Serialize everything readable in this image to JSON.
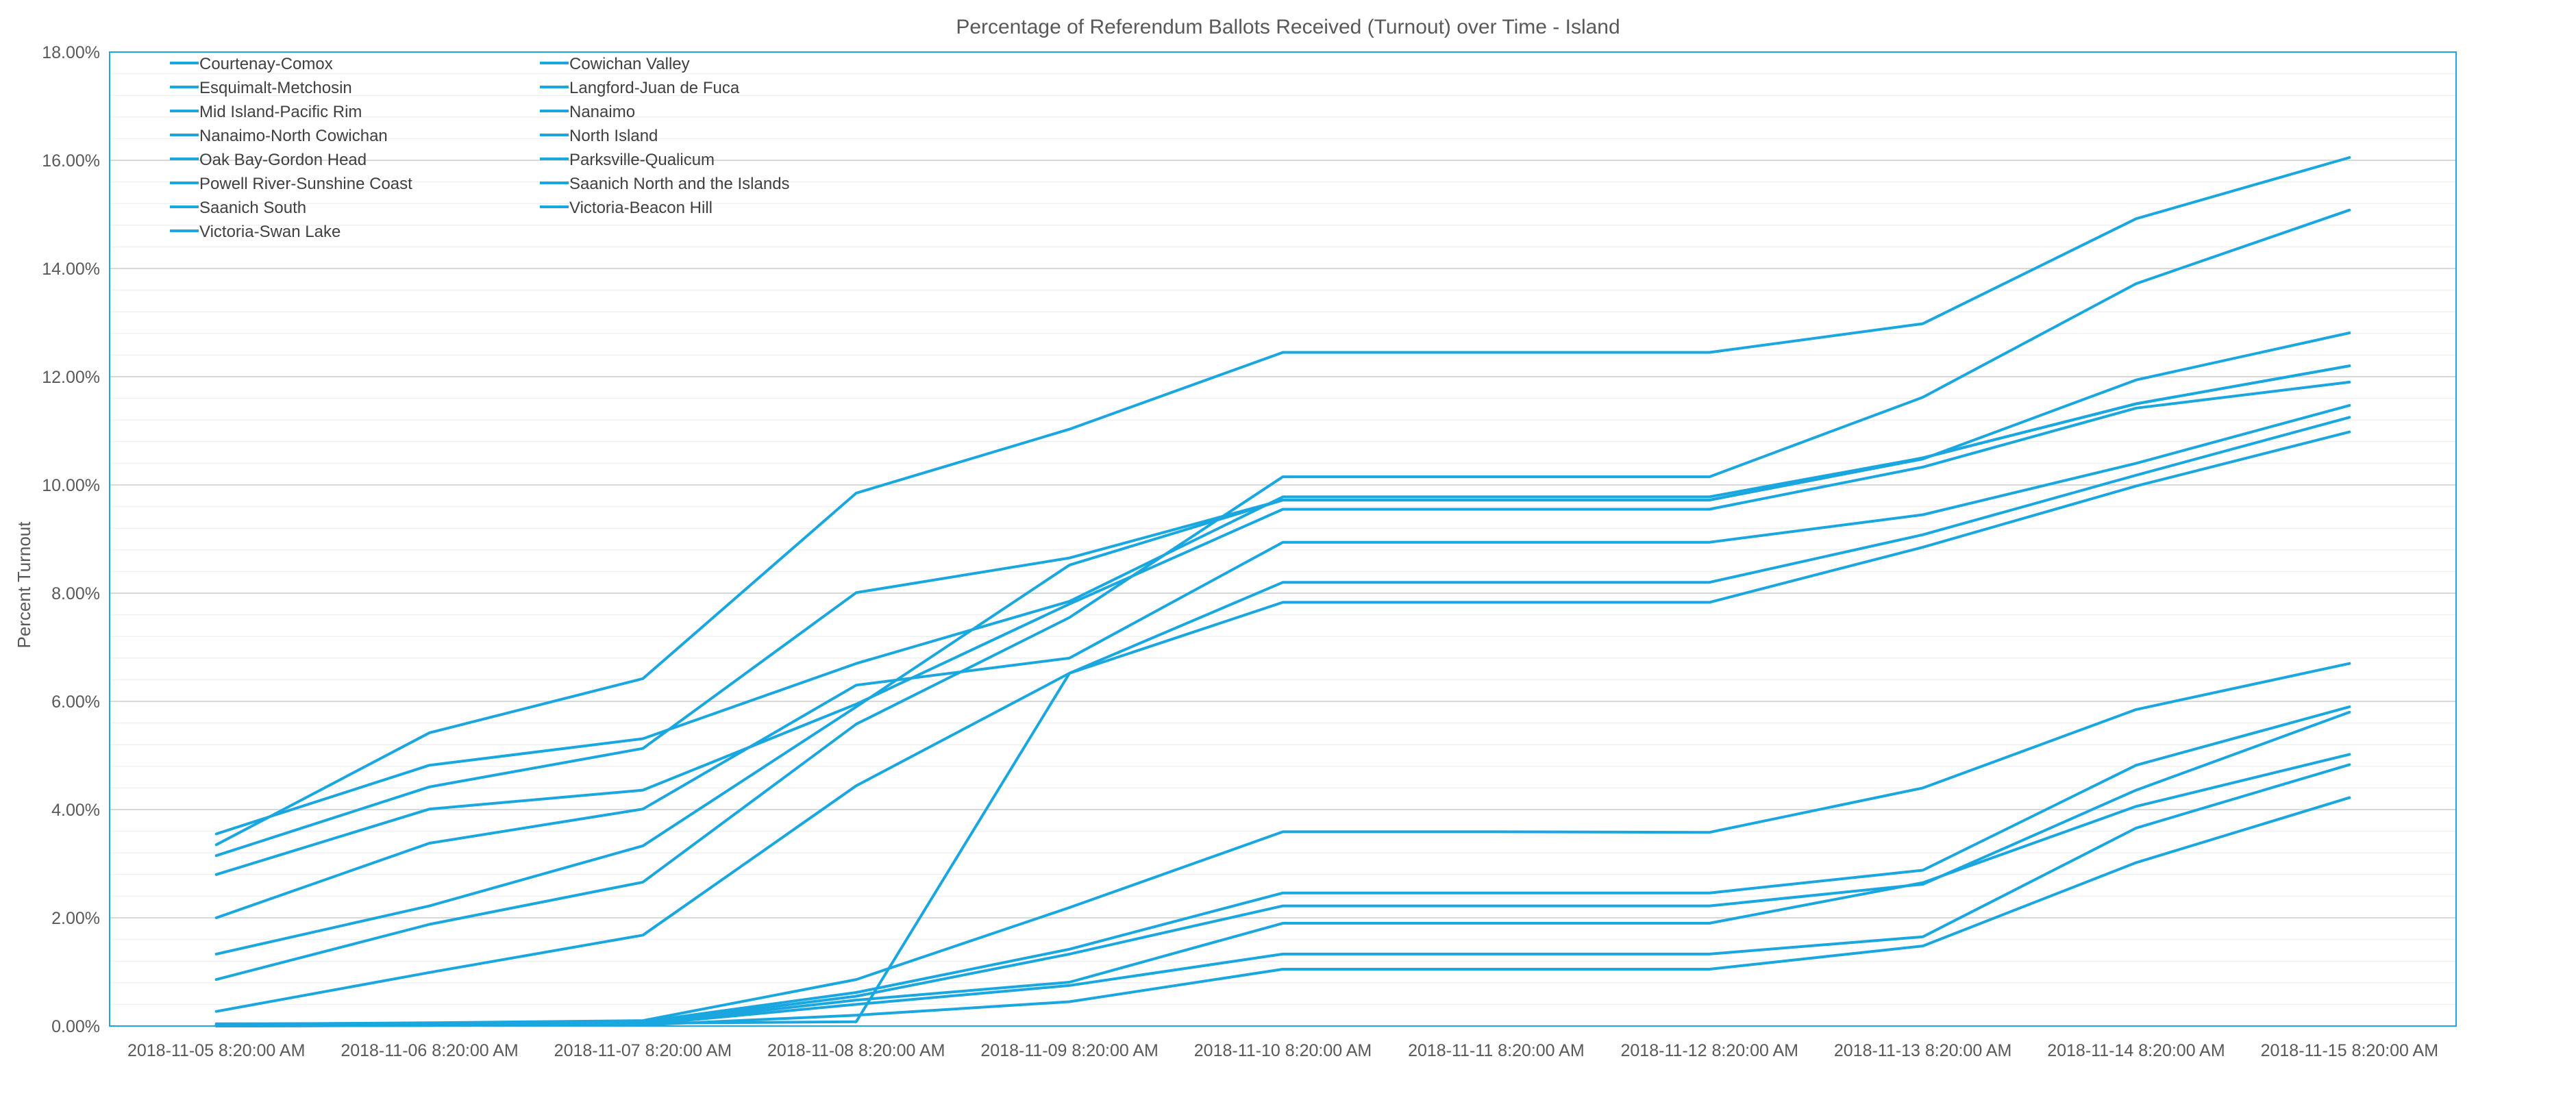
{
  "chart_data": {
    "type": "line",
    "title": "Percentage of Referendum Ballots Received (Turnout) over Time - Island",
    "ylabel": "Percent Turnout",
    "xlabel": "",
    "ylim": [
      0,
      18
    ],
    "y_ticks": [
      "0.00%",
      "2.00%",
      "4.00%",
      "6.00%",
      "8.00%",
      "10.00%",
      "12.00%",
      "14.00%",
      "16.00%",
      "18.00%"
    ],
    "categories": [
      "2018-11-05 8:20:00 AM",
      "2018-11-06 8:20:00 AM",
      "2018-11-07 8:20:00 AM",
      "2018-11-08 8:20:00 AM",
      "2018-11-09 8:20:00 AM",
      "2018-11-10 8:20:00 AM",
      "2018-11-11 8:20:00 AM",
      "2018-11-12 8:20:00 AM",
      "2018-11-13 8:20:00 AM",
      "2018-11-14 8:20:00 AM",
      "2018-11-15 8:20:00 AM"
    ],
    "grid": true,
    "legend_position": "top-left",
    "series_color": "#1aa7e0",
    "series": [
      {
        "name": "Courtenay-Comox",
        "values": [
          3.55,
          4.82,
          5.31,
          6.7,
          7.85,
          9.78,
          9.78,
          9.78,
          10.5,
          11.5,
          12.2
        ]
      },
      {
        "name": "Cowichan Valley",
        "values": [
          3.35,
          5.42,
          6.42,
          9.85,
          11.03,
          12.45,
          12.45,
          12.45,
          12.98,
          14.92,
          16.05
        ]
      },
      {
        "name": "Esquimalt-Metchosin",
        "values": [
          3.15,
          4.42,
          5.13,
          8.01,
          8.65,
          9.72,
          9.72,
          9.72,
          10.48,
          11.94,
          12.81
        ]
      },
      {
        "name": "Langford-Juan de Fuca",
        "values": [
          2.8,
          4.01,
          4.36,
          5.95,
          7.8,
          9.55,
          9.55,
          9.55,
          10.33,
          11.42,
          11.9
        ]
      },
      {
        "name": "Mid Island-Pacific Rim",
        "values": [
          2.0,
          3.38,
          4.01,
          6.3,
          6.8,
          8.94,
          8.94,
          8.94,
          9.45,
          10.4,
          11.47
        ]
      },
      {
        "name": "Nanaimo",
        "values": [
          1.33,
          2.22,
          3.33,
          5.9,
          8.52,
          9.72,
          9.72,
          9.72,
          10.5,
          11.5,
          12.2
        ]
      },
      {
        "name": "Nanaimo-North Cowichan",
        "values": [
          0.86,
          1.88,
          2.66,
          5.58,
          7.55,
          10.15,
          10.15,
          10.15,
          11.62,
          13.72,
          15.08
        ]
      },
      {
        "name": "North Island",
        "values": [
          0.27,
          0.99,
          1.68,
          4.44,
          6.52,
          8.2,
          8.2,
          8.2,
          9.08,
          10.18,
          11.25
        ]
      },
      {
        "name": "Oak Bay-Gordon Head",
        "values": [
          0.04,
          0.05,
          0.05,
          0.08,
          6.52,
          7.83,
          7.83,
          7.83,
          8.85,
          9.98,
          10.98
        ]
      },
      {
        "name": "Parksville-Qualicum",
        "values": [
          0.03,
          0.06,
          0.1,
          0.86,
          2.19,
          3.59,
          3.59,
          3.58,
          4.4,
          5.85,
          6.7
        ]
      },
      {
        "name": "Powell River-Sunshine Coast",
        "values": [
          0.02,
          0.04,
          0.08,
          0.62,
          1.42,
          2.46,
          2.46,
          2.46,
          2.88,
          4.82,
          5.9
        ]
      },
      {
        "name": "Saanich North and the Islands",
        "values": [
          0.01,
          0.03,
          0.06,
          0.55,
          1.33,
          2.22,
          2.22,
          2.22,
          2.62,
          4.36,
          5.8
        ]
      },
      {
        "name": "Saanich South",
        "values": [
          0.01,
          0.02,
          0.04,
          0.48,
          0.81,
          1.9,
          1.9,
          1.9,
          2.65,
          4.06,
          5.02
        ]
      },
      {
        "name": "Victoria-Beacon Hill",
        "values": [
          0.0,
          0.01,
          0.03,
          0.4,
          0.75,
          1.33,
          1.33,
          1.33,
          1.65,
          3.66,
          4.83
        ]
      },
      {
        "name": "Victoria-Swan Lake",
        "values": [
          0.0,
          0.01,
          0.02,
          0.2,
          0.45,
          1.05,
          1.05,
          1.05,
          1.48,
          3.02,
          4.22
        ]
      }
    ]
  }
}
